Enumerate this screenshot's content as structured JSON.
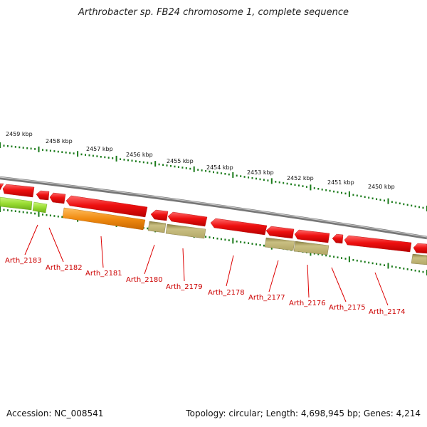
{
  "title": "Arthrobacter sp. FB24 chromosome 1, complete sequence",
  "footer": {
    "accession": "Accession: NC_008541",
    "topology": "Topology: circular; Length: 4,698,945 bp; Genes: 4,214"
  },
  "colors": {
    "gene_red": "#ee1010",
    "gene_green": "#99dd33",
    "gene_orange": "#f08a10",
    "gene_khaki": "#b8ad6a",
    "backbone": "#808080",
    "tick": "#1a7a1a",
    "label": "#cc0000"
  },
  "kbp_labels": [
    "2459 kbp",
    "2458 kbp",
    "2457 kbp",
    "2456 kbp",
    "2455 kbp",
    "2454 kbp",
    "2453 kbp",
    "2452 kbp",
    "2451 kbp",
    "2450 kbp"
  ],
  "gene_labels": [
    "Arth_2183",
    "Arth_2182",
    "Arth_2181",
    "Arth_2180",
    "Arth_2179",
    "Arth_2178",
    "Arth_2177",
    "Arth_2176",
    "Arth_2175",
    "Arth_2174"
  ]
}
